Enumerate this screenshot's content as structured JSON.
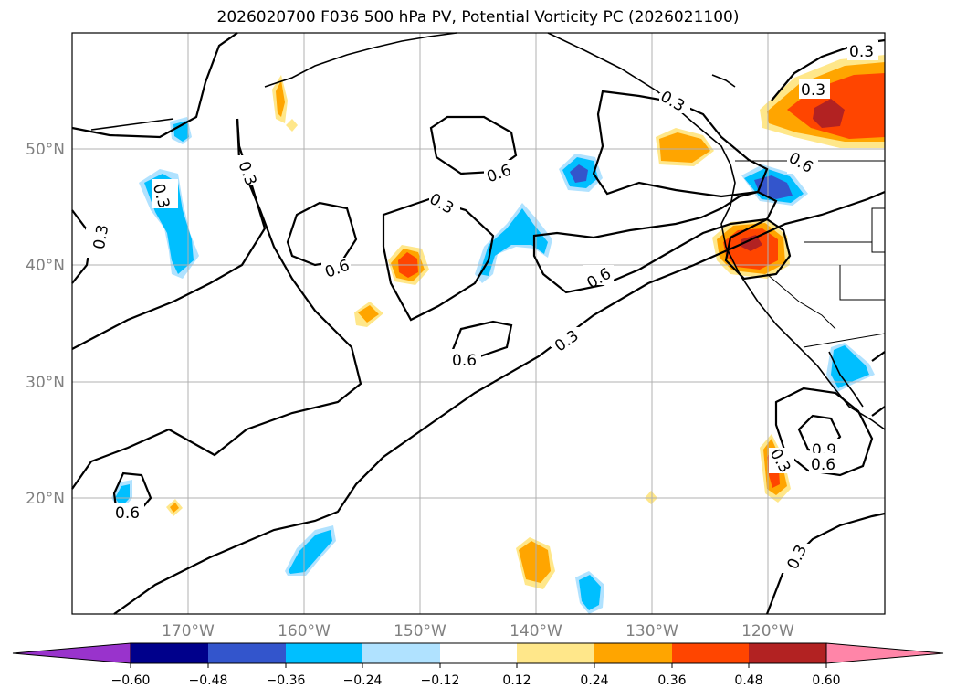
{
  "title": "2026020700 F036 500 hPa PV, Potential Vorticity PC (2026021100)",
  "map": {
    "projection": "equirectangular",
    "lon_range": [
      -180,
      -110
    ],
    "lat_range": [
      10,
      60
    ],
    "lat_ticks": [
      {
        "value": 50,
        "label": "50°N"
      },
      {
        "value": 40,
        "label": "40°N"
      },
      {
        "value": 30,
        "label": "30°N"
      },
      {
        "value": 20,
        "label": "20°N"
      }
    ],
    "lon_ticks": [
      {
        "value": -170,
        "label": "170°W"
      },
      {
        "value": -160,
        "label": "160°W"
      },
      {
        "value": -150,
        "label": "150°W"
      },
      {
        "value": -140,
        "label": "140°W"
      },
      {
        "value": -130,
        "label": "130°W"
      },
      {
        "value": -120,
        "label": "120°W"
      }
    ],
    "contour_labels": [
      "0.3",
      "0.6",
      "0.9"
    ]
  },
  "colorbar": {
    "levels": [
      "−0.60",
      "−0.48",
      "−0.36",
      "−0.24",
      "−0.12",
      "0.12",
      "0.24",
      "0.36",
      "0.48",
      "0.60"
    ],
    "colors": [
      "#9933cc",
      "#00008b",
      "#3355cc",
      "#00bfff",
      "#b0e2ff",
      "#ffffff",
      "#ffe78a",
      "#ffa500",
      "#ff4500",
      "#b22222",
      "#ff85a8"
    ]
  },
  "colors": {
    "contour": "#000000",
    "grid": "#b0b0b0",
    "coast": "#000000"
  }
}
